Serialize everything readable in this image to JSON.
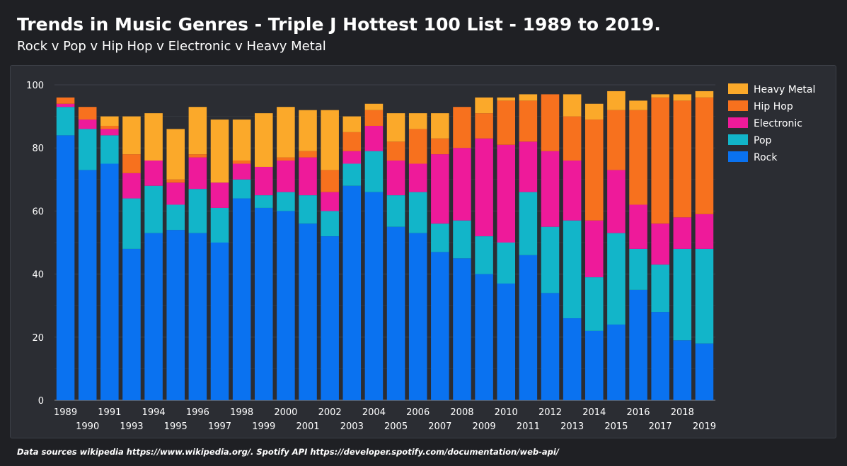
{
  "title": "Trends in Music Genres - Triple J Hottest 100 List - 1989 to 2019.",
  "subtitle": "Rock v Pop v Hip Hop v Electronic v Heavy Metal",
  "footer": "Data sources wikipedia https://www.wikipedia.org/. Spotify API https://developer.spotify.com/documentation/web-api/",
  "chart_data": {
    "type": "bar",
    "stacked": true,
    "categories": [
      "1989",
      "1990",
      "1991",
      "1993",
      "1994",
      "1995",
      "1996",
      "1997",
      "1998",
      "1999",
      "2000",
      "2001",
      "2002",
      "2003",
      "2004",
      "2005",
      "2006",
      "2007",
      "2008",
      "2009",
      "2010",
      "2011",
      "2012",
      "2013",
      "2014",
      "2015",
      "2016",
      "2017",
      "2018",
      "2019"
    ],
    "x_tick_labels_top": [
      "1989",
      "1991",
      "1994",
      "1996",
      "1998",
      "2000",
      "2002",
      "2004",
      "2006",
      "2008",
      "2010",
      "2012",
      "2014",
      "2016",
      "2018"
    ],
    "x_tick_labels_bottom": [
      "1990",
      "1993",
      "1995",
      "1997",
      "1999",
      "2001",
      "2003",
      "2005",
      "2007",
      "2009",
      "2011",
      "2013",
      "2015",
      "2017",
      "2019"
    ],
    "ylim": [
      0,
      100
    ],
    "y_ticks": [
      0,
      20,
      40,
      60,
      80,
      100
    ],
    "grid": true,
    "legend_position": "top-right",
    "legend_order": [
      "Heavy Metal",
      "Hip Hop",
      "Electronic",
      "Pop",
      "Rock"
    ],
    "series": [
      {
        "name": "Rock",
        "color": "#0a72f0",
        "values": [
          84,
          73,
          75,
          48,
          53,
          54,
          53,
          50,
          64,
          61,
          60,
          56,
          52,
          68,
          66,
          55,
          53,
          47,
          45,
          40,
          37,
          46,
          34,
          26,
          22,
          24,
          35,
          28,
          19,
          18
        ]
      },
      {
        "name": "Pop",
        "color": "#12b5c9",
        "values": [
          9,
          13,
          9,
          16,
          15,
          8,
          14,
          11,
          6,
          4,
          6,
          9,
          8,
          7,
          13,
          10,
          13,
          9,
          12,
          12,
          13,
          20,
          21,
          31,
          17,
          29,
          13,
          15,
          29,
          30
        ]
      },
      {
        "name": "Electronic",
        "color": "#ee1a9a",
        "values": [
          1,
          3,
          2,
          8,
          8,
          7,
          10,
          8,
          5,
          9,
          10,
          12,
          6,
          4,
          8,
          11,
          9,
          22,
          23,
          31,
          31,
          16,
          24,
          19,
          18,
          20,
          14,
          13,
          10,
          11
        ]
      },
      {
        "name": "Hip Hop",
        "color": "#f7711e",
        "values": [
          2,
          4,
          1,
          6,
          0,
          1,
          1,
          0,
          1,
          0,
          1,
          2,
          7,
          6,
          5,
          6,
          11,
          5,
          13,
          8,
          14,
          13,
          18,
          14,
          32,
          19,
          30,
          40,
          37,
          37
        ]
      },
      {
        "name": "Heavy Metal",
        "color": "#fba92a",
        "values": [
          0,
          0,
          3,
          12,
          15,
          16,
          15,
          20,
          13,
          17,
          16,
          13,
          19,
          5,
          2,
          9,
          5,
          8,
          0,
          5,
          1,
          2,
          0,
          7,
          5,
          6,
          3,
          1,
          2,
          2
        ]
      }
    ]
  }
}
